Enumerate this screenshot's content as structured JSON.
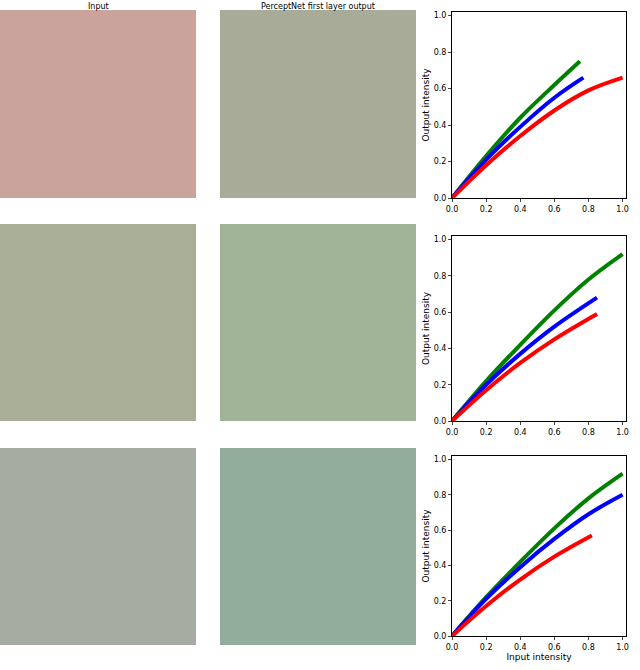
{
  "column_titles": [
    "Input",
    "PerceptNet first layer output"
  ],
  "chart_data": [
    {
      "type": "line",
      "ylabel": "Output intensity",
      "xlim": [
        0,
        1.02
      ],
      "ylim": [
        0,
        1.02
      ],
      "xticks": [
        {
          "value": 0,
          "label": "0.0"
        },
        {
          "value": 0.2,
          "label": "0.2"
        },
        {
          "value": 0.4,
          "label": "0.4"
        },
        {
          "value": 0.6,
          "label": "0.6"
        },
        {
          "value": 0.8,
          "label": "0.8"
        },
        {
          "value": 1,
          "label": "1.0"
        }
      ],
      "yticks": [
        {
          "value": 0,
          "label": "0.0"
        },
        {
          "value": 0.2,
          "label": "0.2"
        },
        {
          "value": 0.4,
          "label": "0.4"
        },
        {
          "value": 0.6,
          "label": "0.6"
        },
        {
          "value": 0.8,
          "label": "0.8"
        },
        {
          "value": 1,
          "label": "1.0"
        }
      ],
      "series": [
        {
          "color": "#008000",
          "x": [
            0,
            0.2,
            0.4,
            0.6,
            0.75
          ],
          "values": [
            0,
            0.23,
            0.44,
            0.62,
            0.75
          ]
        },
        {
          "color": "#0000ff",
          "x": [
            0,
            0.2,
            0.4,
            0.6,
            0.77
          ],
          "values": [
            0,
            0.21,
            0.39,
            0.55,
            0.66
          ]
        },
        {
          "color": "#ff0000",
          "x": [
            0,
            0.2,
            0.4,
            0.6,
            0.8,
            1.0
          ],
          "values": [
            0,
            0.18,
            0.34,
            0.48,
            0.59,
            0.66
          ]
        }
      ]
    },
    {
      "type": "line",
      "ylabel": "Output intensity",
      "xlim": [
        0,
        1.02
      ],
      "ylim": [
        0,
        1.02
      ],
      "xticks": [
        {
          "value": 0,
          "label": "0.0"
        },
        {
          "value": 0.2,
          "label": "0.2"
        },
        {
          "value": 0.4,
          "label": "0.4"
        },
        {
          "value": 0.6,
          "label": "0.6"
        },
        {
          "value": 0.8,
          "label": "0.8"
        },
        {
          "value": 1,
          "label": "1.0"
        }
      ],
      "yticks": [
        {
          "value": 0,
          "label": "0.0"
        },
        {
          "value": 0.2,
          "label": "0.2"
        },
        {
          "value": 0.4,
          "label": "0.4"
        },
        {
          "value": 0.6,
          "label": "0.6"
        },
        {
          "value": 0.8,
          "label": "0.8"
        },
        {
          "value": 1,
          "label": "1.0"
        }
      ],
      "series": [
        {
          "color": "#008000",
          "x": [
            0,
            0.2,
            0.4,
            0.6,
            0.8,
            1.0
          ],
          "values": [
            0,
            0.22,
            0.42,
            0.61,
            0.78,
            0.92
          ]
        },
        {
          "color": "#0000ff",
          "x": [
            0,
            0.2,
            0.4,
            0.6,
            0.85
          ],
          "values": [
            0,
            0.2,
            0.37,
            0.52,
            0.68
          ]
        },
        {
          "color": "#ff0000",
          "x": [
            0,
            0.2,
            0.4,
            0.6,
            0.85
          ],
          "values": [
            0,
            0.17,
            0.32,
            0.45,
            0.59
          ]
        }
      ]
    },
    {
      "type": "line",
      "xlabel": "Input intensity",
      "ylabel": "Output intensity",
      "xlim": [
        0,
        1.02
      ],
      "ylim": [
        0,
        1.02
      ],
      "xticks": [
        {
          "value": 0,
          "label": "0.0"
        },
        {
          "value": 0.2,
          "label": "0.2"
        },
        {
          "value": 0.4,
          "label": "0.4"
        },
        {
          "value": 0.6,
          "label": "0.6"
        },
        {
          "value": 0.8,
          "label": "0.8"
        },
        {
          "value": 1,
          "label": "1.0"
        }
      ],
      "yticks": [
        {
          "value": 0,
          "label": "0.0"
        },
        {
          "value": 0.2,
          "label": "0.2"
        },
        {
          "value": 0.4,
          "label": "0.4"
        },
        {
          "value": 0.6,
          "label": "0.6"
        },
        {
          "value": 0.8,
          "label": "0.8"
        },
        {
          "value": 1,
          "label": "1.0"
        }
      ],
      "series": [
        {
          "color": "#008000",
          "x": [
            0,
            0.2,
            0.4,
            0.6,
            0.8,
            1.0
          ],
          "values": [
            0,
            0.22,
            0.42,
            0.61,
            0.78,
            0.92
          ]
        },
        {
          "color": "#0000ff",
          "x": [
            0,
            0.2,
            0.4,
            0.6,
            0.8,
            1.0
          ],
          "values": [
            0,
            0.21,
            0.39,
            0.55,
            0.69,
            0.8
          ]
        },
        {
          "color": "#ff0000",
          "x": [
            0,
            0.2,
            0.4,
            0.6,
            0.82
          ],
          "values": [
            0,
            0.17,
            0.32,
            0.45,
            0.57
          ]
        }
      ]
    }
  ]
}
